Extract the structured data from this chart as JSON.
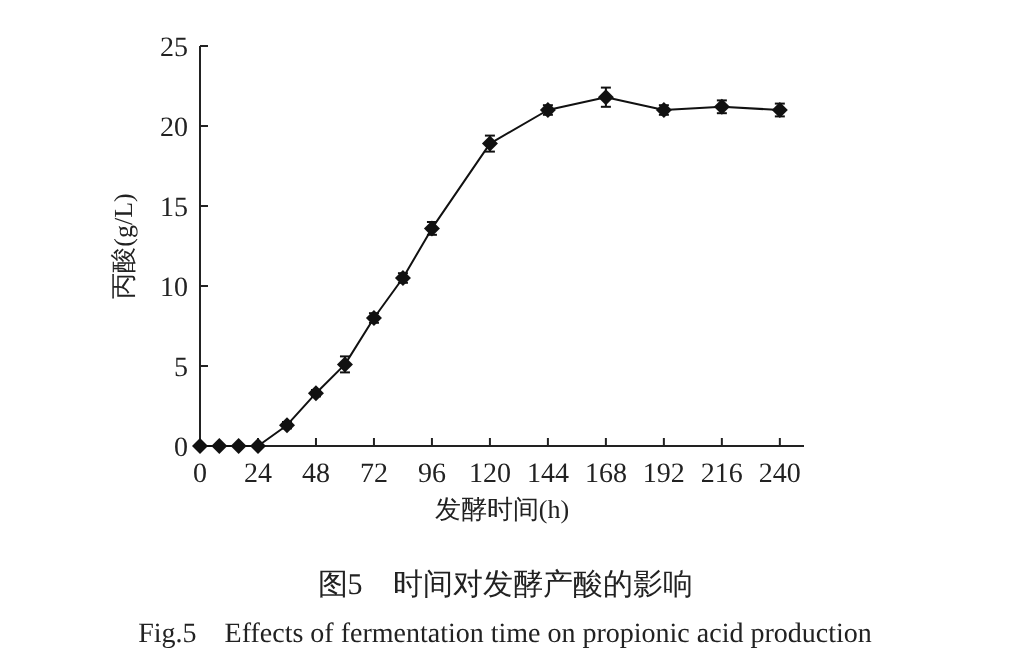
{
  "chart_data": {
    "type": "line",
    "xlabel": "发酵时间(h)",
    "ylabel": "丙酸(g/L)",
    "x": [
      0,
      8,
      16,
      24,
      36,
      48,
      60,
      72,
      84,
      96,
      120,
      144,
      168,
      192,
      216,
      240
    ],
    "series": [
      {
        "color": "#111111",
        "values": [
          0,
          0,
          0,
          0,
          1.3,
          3.3,
          5.1,
          8.0,
          10.5,
          13.6,
          18.9,
          21.0,
          21.8,
          21.0,
          21.2,
          21.0
        ],
        "errors": [
          null,
          null,
          null,
          null,
          0.2,
          0.2,
          0.5,
          0.3,
          0.3,
          0.4,
          0.5,
          0.3,
          0.6,
          0.3,
          0.4,
          0.4
        ]
      }
    ],
    "xlim": [
      0,
      250
    ],
    "ylim": [
      0,
      25
    ],
    "xticks": [
      0,
      24,
      48,
      72,
      96,
      120,
      144,
      168,
      192,
      216,
      240
    ],
    "yticks": [
      0,
      5,
      10,
      15,
      20,
      25
    ],
    "marker": "diamond",
    "line_style": "solid",
    "annotations": [
      "图5　时间对发酵产酸的影响",
      "Fig.5　Effects of fermentation time on propionic acid production"
    ]
  }
}
